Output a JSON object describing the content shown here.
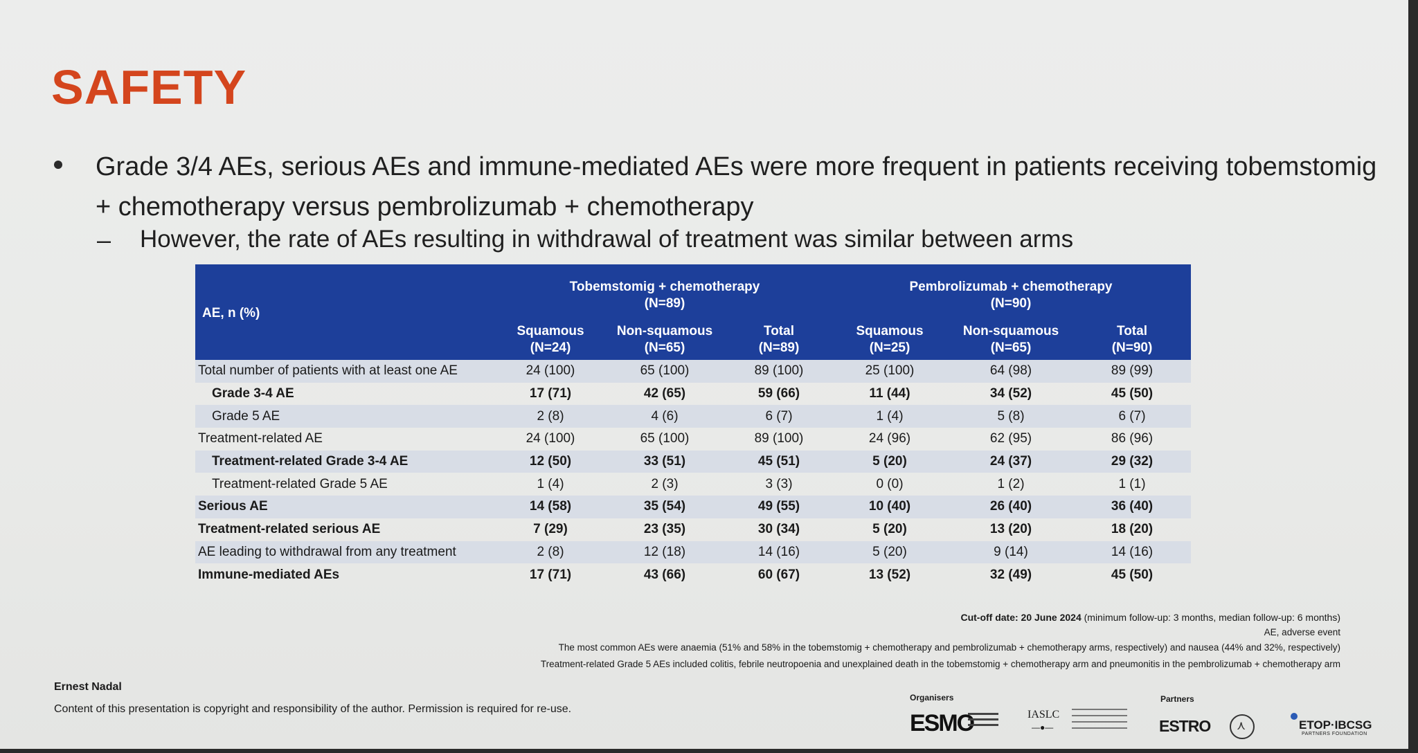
{
  "slide": {
    "title": "SAFETY",
    "bullet": "Grade 3/4 AEs, serious AEs and immune-mediated AEs were more frequent in patients receiving tobemstomig + chemotherapy versus pembrolizumab + chemotherapy",
    "sub_dash": "–",
    "sub_bullet": "However, the rate of AEs resulting in withdrawal of treatment was similar between arms"
  },
  "table": {
    "corner": "AE, n (%)",
    "groups": [
      {
        "name": "Tobemstomig + chemotherapy",
        "n": "(N=89)"
      },
      {
        "name": "Pembrolizumab + chemotherapy",
        "n": "(N=90)"
      }
    ],
    "columns": [
      {
        "name": "Squamous",
        "n": "(N=24)"
      },
      {
        "name": "Non-squamous",
        "n": "(N=65)"
      },
      {
        "name": "Total",
        "n": "(N=89)"
      },
      {
        "name": "Squamous",
        "n": "(N=25)"
      },
      {
        "name": "Non-squamous",
        "n": "(N=65)"
      },
      {
        "name": "Total",
        "n": "(N=90)"
      }
    ],
    "rows": [
      {
        "label": "Total number of patients with at least one AE",
        "values": [
          "24 (100)",
          "65 (100)",
          "89 (100)",
          "25 (100)",
          "64 (98)",
          "89 (99)"
        ]
      },
      {
        "label": "Grade 3-4 AE",
        "values": [
          "17 (71)",
          "42 (65)",
          "59 (66)",
          "11 (44)",
          "34 (52)",
          "45 (50)"
        ]
      },
      {
        "label": "Grade 5 AE",
        "values": [
          "2 (8)",
          "4 (6)",
          "6 (7)",
          "1 (4)",
          "5 (8)",
          "6 (7)"
        ]
      },
      {
        "label": "Treatment-related AE",
        "values": [
          "24 (100)",
          "65 (100)",
          "89 (100)",
          "24 (96)",
          "62 (95)",
          "86 (96)"
        ]
      },
      {
        "label": "Treatment-related Grade 3-4 AE",
        "values": [
          "12 (50)",
          "33 (51)",
          "45 (51)",
          "5 (20)",
          "24 (37)",
          "29 (32)"
        ]
      },
      {
        "label": "Treatment-related Grade 5 AE",
        "values": [
          "1 (4)",
          "2 (3)",
          "3 (3)",
          "0 (0)",
          "1 (2)",
          "1 (1)"
        ]
      },
      {
        "label": "Serious AE",
        "values": [
          "14 (58)",
          "35 (54)",
          "49 (55)",
          "10 (40)",
          "26 (40)",
          "36 (40)"
        ]
      },
      {
        "label": "Treatment-related serious AE",
        "values": [
          "7 (29)",
          "23 (35)",
          "30 (34)",
          "5 (20)",
          "13 (20)",
          "18 (20)"
        ]
      },
      {
        "label": "AE leading to withdrawal from any treatment",
        "values": [
          "2 (8)",
          "12 (18)",
          "14 (16)",
          "5 (20)",
          "9 (14)",
          "14 (16)"
        ]
      },
      {
        "label": "Immune-mediated AEs",
        "values": [
          "17 (71)",
          "43 (66)",
          "60 (67)",
          "13 (52)",
          "32 (49)",
          "45 (50)"
        ]
      }
    ]
  },
  "footnotes": {
    "cutoff_bold": "Cut-off date: 20 June 2024",
    "cutoff_rest": " (minimum follow-up: 3 months, median follow-up: 6 months)",
    "abbrev": "AE, adverse event",
    "common": "The most common AEs were anaemia (51% and 58% in the tobemstomig + chemotherapy and pembrolizumab + chemotherapy arms, respectively) and nausea (44% and 32%, respectively)",
    "grade5": "Treatment-related Grade 5 AEs included colitis, febrile neutropoenia and unexplained death in the tobemstomig + chemotherapy arm and pneumonitis in the pembrolizumab + chemotherapy arm"
  },
  "footer": {
    "author": "Ernest Nadal",
    "copyright": "Content of this presentation is copyright and responsibility of the author. Permission is required for re-use.",
    "organisers_label": "Organisers",
    "partners_label": "Partners",
    "logos": {
      "esmo": "ESMO",
      "iaslc": "IASLC",
      "estro": "ESTRO",
      "etop": "ETOP·IBCSG",
      "etop_sub": "PARTNERS FOUNDATION"
    }
  },
  "colors": {
    "title": "#d4451d",
    "header_blue": "#1d3f9a",
    "row_shade": "#d8dde6"
  }
}
